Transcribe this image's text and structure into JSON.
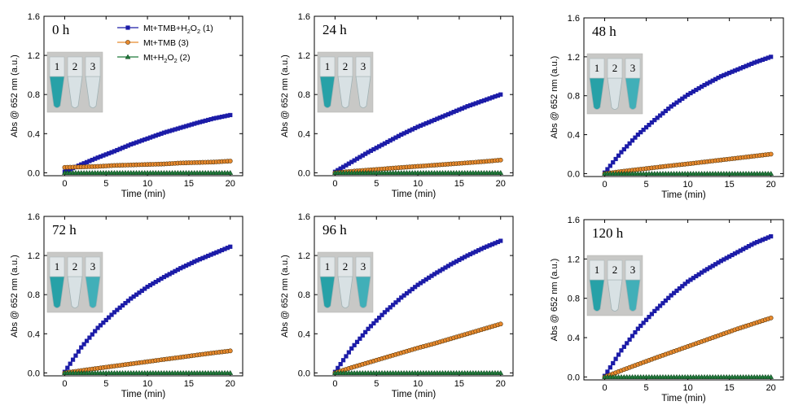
{
  "chart_data": [
    {
      "type": "line",
      "title": "0 h",
      "xlabel": "Time (min)",
      "ylabel": "Abs @ 652 nm (a.u.)",
      "xlim": [
        -2.5,
        21.5
      ],
      "ylim": [
        -0.03,
        1.6
      ],
      "xticks": [
        0,
        5,
        10,
        15,
        20
      ],
      "yticks": [
        0.0,
        0.4,
        0.8,
        1.2,
        1.6
      ],
      "ytick_labels": [
        "0.0",
        "0.4",
        "0.8",
        "1.2",
        "1.6"
      ],
      "legend": {
        "placement": "top",
        "entries": [
          {
            "label": "Mt+TMB+H2O2 (1)",
            "color": "#1c1ca8",
            "marker": "square"
          },
          {
            "label": "Mt+TMB (3)",
            "color": "#e88a2e",
            "marker": "circle"
          },
          {
            "label": "Mt+H2O2 (2)",
            "color": "#1f7a3a",
            "marker": "triangle"
          }
        ]
      },
      "inset": {
        "labels": [
          "1",
          "2",
          "3"
        ],
        "blue_tubes": [
          1
        ]
      },
      "series": [
        {
          "x": [
            0,
            2,
            4,
            6,
            8,
            10,
            12,
            14,
            16,
            18,
            20
          ],
          "values": [
            0.01,
            0.085,
            0.155,
            0.22,
            0.29,
            0.35,
            0.41,
            0.46,
            0.51,
            0.555,
            0.59
          ],
          "color": "#1c1ca8",
          "marker": "square"
        },
        {
          "x": [
            0,
            2,
            4,
            6,
            8,
            10,
            12,
            14,
            16,
            18,
            20
          ],
          "values": [
            0.055,
            0.06,
            0.065,
            0.075,
            0.08,
            0.085,
            0.09,
            0.1,
            0.105,
            0.11,
            0.12
          ],
          "color": "#e88a2e",
          "marker": "circle"
        },
        {
          "x": [
            0,
            2,
            4,
            6,
            8,
            10,
            12,
            14,
            16,
            18,
            20
          ],
          "values": [
            0.0,
            0.0,
            0.0,
            0.0,
            0.0,
            0.0,
            0.0,
            0.0,
            0.0,
            0.0,
            0.0
          ],
          "color": "#1f7a3a",
          "marker": "triangle"
        }
      ]
    },
    {
      "type": "line",
      "title": "24 h",
      "xlabel": "Time (min)",
      "ylabel": "Abs @ 652 nm (a.u.)",
      "xlim": [
        -2.5,
        21.5
      ],
      "ylim": [
        -0.03,
        1.6
      ],
      "xticks": [
        0,
        5,
        10,
        15,
        20
      ],
      "yticks": [
        0.0,
        0.4,
        0.8,
        1.2,
        1.6
      ],
      "ytick_labels": [
        "0.0",
        "0.4",
        "0.8",
        "1.2",
        "1.6"
      ],
      "inset": {
        "labels": [
          "1",
          "2",
          "3"
        ],
        "blue_tubes": [
          1
        ]
      },
      "series": [
        {
          "x": [
            0,
            2,
            4,
            6,
            8,
            10,
            12,
            14,
            16,
            18,
            20
          ],
          "values": [
            0.01,
            0.11,
            0.21,
            0.3,
            0.39,
            0.47,
            0.54,
            0.61,
            0.68,
            0.74,
            0.8
          ],
          "color": "#1c1ca8",
          "marker": "square"
        },
        {
          "x": [
            0,
            2,
            4,
            6,
            8,
            10,
            12,
            14,
            16,
            18,
            20
          ],
          "values": [
            0.0,
            0.015,
            0.028,
            0.041,
            0.054,
            0.066,
            0.078,
            0.09,
            0.102,
            0.115,
            0.13
          ],
          "color": "#e88a2e",
          "marker": "circle"
        },
        {
          "x": [
            0,
            2,
            4,
            6,
            8,
            10,
            12,
            14,
            16,
            18,
            20
          ],
          "values": [
            0.0,
            0.0,
            0.0,
            0.0,
            0.0,
            0.0,
            0.0,
            0.0,
            0.0,
            0.0,
            0.0
          ],
          "color": "#1f7a3a",
          "marker": "triangle"
        }
      ]
    },
    {
      "type": "line",
      "title": "48 h",
      "xlabel": "Time (min)",
      "ylabel": "Abs @ 652 nm (a.u.)",
      "xlim": [
        -2.5,
        21.5
      ],
      "ylim": [
        -0.03,
        1.6
      ],
      "xticks": [
        0,
        5,
        10,
        15,
        20
      ],
      "yticks": [
        0.0,
        0.4,
        0.8,
        1.2,
        1.6
      ],
      "ytick_labels": [
        "0.0",
        "0.4",
        "0.8",
        "1.2",
        "1.6"
      ],
      "inset": {
        "labels": [
          "1",
          "2",
          "3"
        ],
        "blue_tubes": [
          1,
          3
        ]
      },
      "series": [
        {
          "x": [
            0,
            2,
            4,
            6,
            8,
            10,
            12,
            14,
            16,
            18,
            20
          ],
          "values": [
            0.01,
            0.22,
            0.4,
            0.55,
            0.69,
            0.81,
            0.91,
            1.0,
            1.07,
            1.14,
            1.2
          ],
          "color": "#1c1ca8",
          "marker": "square"
        },
        {
          "x": [
            0,
            2,
            4,
            6,
            8,
            10,
            12,
            14,
            16,
            18,
            20
          ],
          "values": [
            0.0,
            0.022,
            0.042,
            0.062,
            0.082,
            0.1,
            0.12,
            0.14,
            0.16,
            0.18,
            0.2
          ],
          "color": "#e88a2e",
          "marker": "circle"
        },
        {
          "x": [
            0,
            2,
            4,
            6,
            8,
            10,
            12,
            14,
            16,
            18,
            20
          ],
          "values": [
            0.0,
            0.0,
            0.0,
            0.0,
            0.0,
            0.0,
            0.0,
            0.0,
            0.0,
            0.0,
            0.0
          ],
          "color": "#1f7a3a",
          "marker": "triangle"
        }
      ]
    },
    {
      "type": "line",
      "title": "72 h",
      "xlabel": "Time (min)",
      "ylabel": "Abs @ 652 nm (a.u.)",
      "xlim": [
        -2.5,
        21.5
      ],
      "ylim": [
        -0.03,
        1.6
      ],
      "xticks": [
        0,
        5,
        10,
        15,
        20
      ],
      "yticks": [
        0.0,
        0.4,
        0.8,
        1.2,
        1.6
      ],
      "ytick_labels": [
        "0.0",
        "0.4",
        "0.8",
        "1.2",
        "1.6"
      ],
      "inset": {
        "labels": [
          "1",
          "2",
          "3"
        ],
        "blue_tubes": [
          1,
          3
        ]
      },
      "series": [
        {
          "x": [
            0,
            2,
            4,
            6,
            8,
            10,
            12,
            14,
            16,
            18,
            20
          ],
          "values": [
            0.01,
            0.26,
            0.46,
            0.62,
            0.76,
            0.88,
            0.98,
            1.07,
            1.15,
            1.22,
            1.29
          ],
          "color": "#1c1ca8",
          "marker": "square"
        },
        {
          "x": [
            0,
            2,
            4,
            6,
            8,
            10,
            12,
            14,
            16,
            18,
            20
          ],
          "values": [
            0.0,
            0.024,
            0.047,
            0.07,
            0.092,
            0.115,
            0.138,
            0.16,
            0.183,
            0.205,
            0.225
          ],
          "color": "#e88a2e",
          "marker": "circle"
        },
        {
          "x": [
            0,
            2,
            4,
            6,
            8,
            10,
            12,
            14,
            16,
            18,
            20
          ],
          "values": [
            0.0,
            0.0,
            0.0,
            0.0,
            0.0,
            0.0,
            0.0,
            0.0,
            0.0,
            0.0,
            0.0
          ],
          "color": "#1f7a3a",
          "marker": "triangle"
        }
      ]
    },
    {
      "type": "line",
      "title": "96 h",
      "xlabel": "Time (min)",
      "ylabel": "Abs @ 652 nm (a.u.)",
      "xlim": [
        -2.5,
        21.5
      ],
      "ylim": [
        -0.03,
        1.6
      ],
      "xticks": [
        0,
        5,
        10,
        15,
        20
      ],
      "yticks": [
        0.0,
        0.4,
        0.8,
        1.2,
        1.6
      ],
      "ytick_labels": [
        "0.0",
        "0.4",
        "0.8",
        "1.2",
        "1.6"
      ],
      "inset": {
        "labels": [
          "1",
          "2",
          "3"
        ],
        "blue_tubes": [
          1,
          3
        ]
      },
      "series": [
        {
          "x": [
            0,
            2,
            4,
            6,
            8,
            10,
            12,
            14,
            16,
            18,
            20
          ],
          "values": [
            0.01,
            0.25,
            0.45,
            0.62,
            0.77,
            0.9,
            1.01,
            1.11,
            1.2,
            1.28,
            1.35
          ],
          "color": "#1c1ca8",
          "marker": "square"
        },
        {
          "x": [
            0,
            2,
            4,
            6,
            8,
            10,
            12,
            14,
            16,
            18,
            20
          ],
          "values": [
            0.0,
            0.055,
            0.105,
            0.155,
            0.205,
            0.255,
            0.3,
            0.35,
            0.4,
            0.45,
            0.5
          ],
          "color": "#e88a2e",
          "marker": "circle"
        },
        {
          "x": [
            0,
            2,
            4,
            6,
            8,
            10,
            12,
            14,
            16,
            18,
            20
          ],
          "values": [
            0.0,
            0.0,
            0.0,
            0.0,
            0.0,
            0.0,
            0.0,
            0.0,
            0.0,
            0.0,
            0.0
          ],
          "color": "#1f7a3a",
          "marker": "triangle"
        }
      ]
    },
    {
      "type": "line",
      "title": "120 h",
      "xlabel": "Time (min)",
      "ylabel": "Abs @ 652 nm (a.u.)",
      "xlim": [
        -2.5,
        21.5
      ],
      "ylim": [
        -0.03,
        1.6
      ],
      "xticks": [
        0,
        5,
        10,
        15,
        20
      ],
      "yticks": [
        0.0,
        0.4,
        0.8,
        1.2,
        1.6
      ],
      "ytick_labels": [
        "0.0",
        "0.4",
        "0.8",
        "1.2",
        "1.6"
      ],
      "inset": {
        "labels": [
          "1",
          "2",
          "3"
        ],
        "blue_tubes": [
          1,
          3
        ]
      },
      "series": [
        {
          "x": [
            0,
            2,
            4,
            6,
            8,
            10,
            12,
            14,
            16,
            18,
            20
          ],
          "values": [
            0.01,
            0.27,
            0.49,
            0.67,
            0.83,
            0.97,
            1.08,
            1.18,
            1.27,
            1.36,
            1.43
          ],
          "color": "#1c1ca8",
          "marker": "square"
        },
        {
          "x": [
            0,
            2,
            4,
            6,
            8,
            10,
            12,
            14,
            16,
            18,
            20
          ],
          "values": [
            0.0,
            0.065,
            0.128,
            0.19,
            0.25,
            0.31,
            0.37,
            0.43,
            0.49,
            0.545,
            0.6
          ],
          "color": "#e88a2e",
          "marker": "circle"
        },
        {
          "x": [
            0,
            2,
            4,
            6,
            8,
            10,
            12,
            14,
            16,
            18,
            20
          ],
          "values": [
            0.0,
            0.0,
            0.0,
            0.0,
            0.0,
            0.0,
            0.0,
            0.0,
            0.0,
            0.0,
            0.0
          ],
          "color": "#1f7a3a",
          "marker": "triangle"
        }
      ]
    }
  ]
}
